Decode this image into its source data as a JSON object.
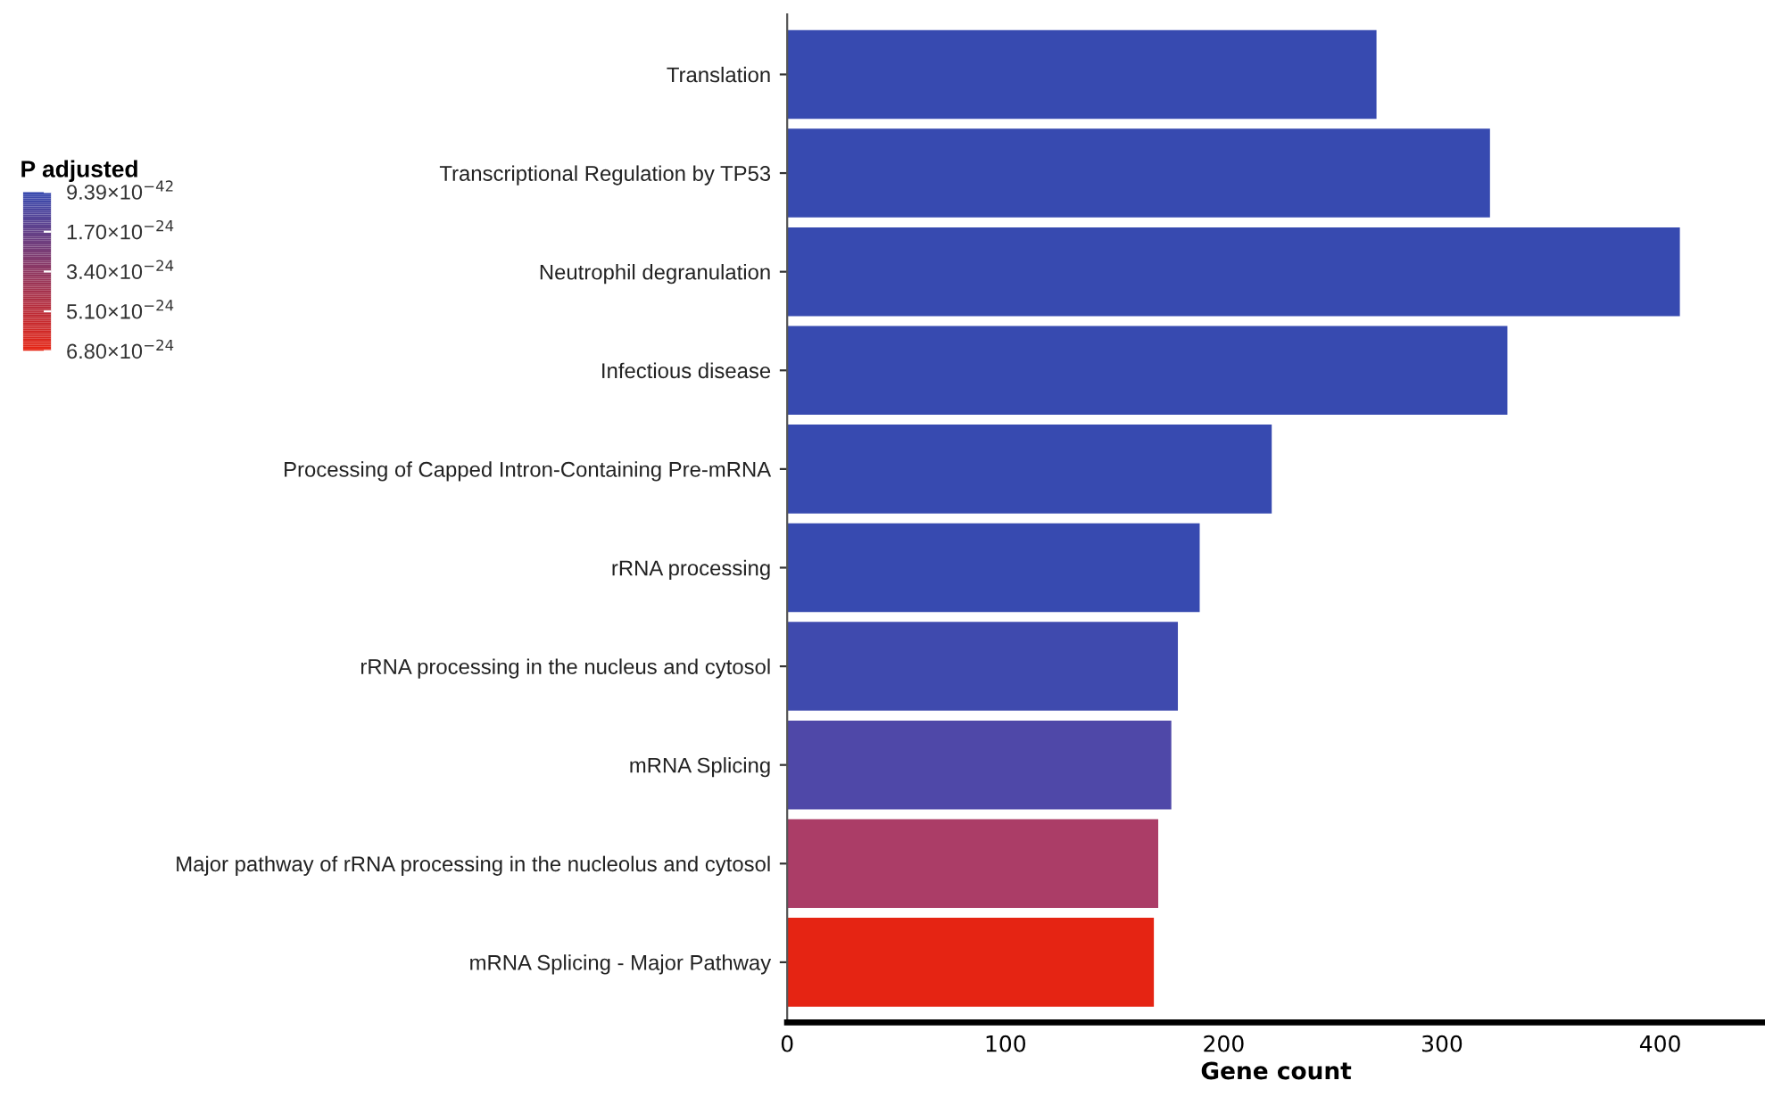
{
  "chart_data": {
    "type": "bar",
    "orientation": "horizontal",
    "xlabel": "Gene count",
    "clabel": "P adjusted",
    "categories": [
      "Translation",
      "Transcriptional Regulation by TP53",
      "Neutrophil degranulation",
      "Infectious disease",
      "Processing of Capped Intron-Containing Pre-mRNA",
      "rRNA processing",
      "rRNA processing in the nucleus and cytosol",
      "mRNA Splicing",
      "Major pathway of rRNA processing in the nucleolus and cytosol",
      "mRNA Splicing - Major Pathway"
    ],
    "values": [
      270,
      322,
      409,
      330,
      222,
      189,
      179,
      176,
      170,
      168
    ],
    "colors": [
      "#374ab0",
      "#374ab0",
      "#374ab0",
      "#374ab0",
      "#374ab0",
      "#374ab0",
      "#3f4aae",
      "#4f48a8",
      "#ab3d67",
      "#e52413"
    ],
    "xlim": [
      0,
      448
    ],
    "xticks": [
      0,
      100,
      200,
      300,
      400
    ],
    "clim": [
      6.8e-24,
      9.39e-42
    ],
    "cticks": [
      {
        "value": 9.39e-42,
        "label": "9.39×10$^{−42}$"
      },
      {
        "value": 1.7e-24,
        "label": "1.70×10$^{−24}$"
      },
      {
        "value": 3.4e-24,
        "label": "3.40×10$^{−24}$"
      },
      {
        "value": 5.1e-24,
        "label": "5.10×10$^{−24}$"
      },
      {
        "value": 6.8e-24,
        "label": "6.80×10$^{−24}$"
      }
    ],
    "grid": false
  }
}
